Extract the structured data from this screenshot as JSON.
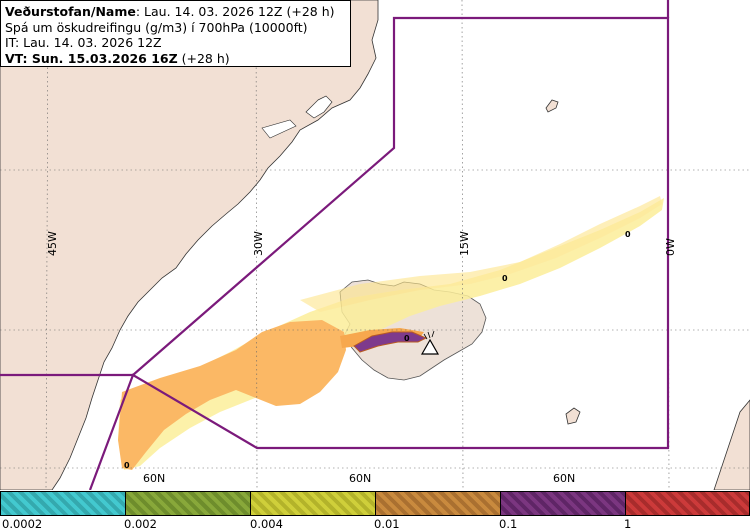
{
  "header": {
    "line1_label": "Veðurstofan/Name",
    "line1_value": ": Lau. 14. 03. 2026 12Z (+28 h)",
    "line2": "Spá um öskudreifingu (g/m3) í 700hPa (10000ft)",
    "line3": "IT: Lau. 14. 03. 2026 12Z",
    "line4_label": "VT: Sun. 15.03.2026 16Z",
    "line4_suffix": " (+28 h)"
  },
  "map": {
    "meridian_labels": [
      "45W",
      "30W",
      "15W",
      "0W"
    ],
    "parallel_labels": [
      "60N",
      "60N",
      "60N"
    ],
    "contour_labels": [
      "0",
      "0",
      "0",
      "0"
    ],
    "volcano_icon": "volcano-triangle-icon",
    "colors": {
      "land": "#f2e0d4",
      "sea": "#ffffff",
      "boundary": "#7b1a7b",
      "ash_low": "#fbe98a",
      "ash_mid": "#fbb65c",
      "ash_high": "#7e3a8c"
    }
  },
  "colorbar": {
    "tick_labels": [
      "0.0002",
      "0.002",
      "0.004",
      "0.01",
      "0.1",
      "1"
    ],
    "colors": [
      "#43c9cf",
      "#88a83a",
      "#cfcf3a",
      "#c98a3e",
      "#7b3680",
      "#cc3a3a"
    ]
  }
}
